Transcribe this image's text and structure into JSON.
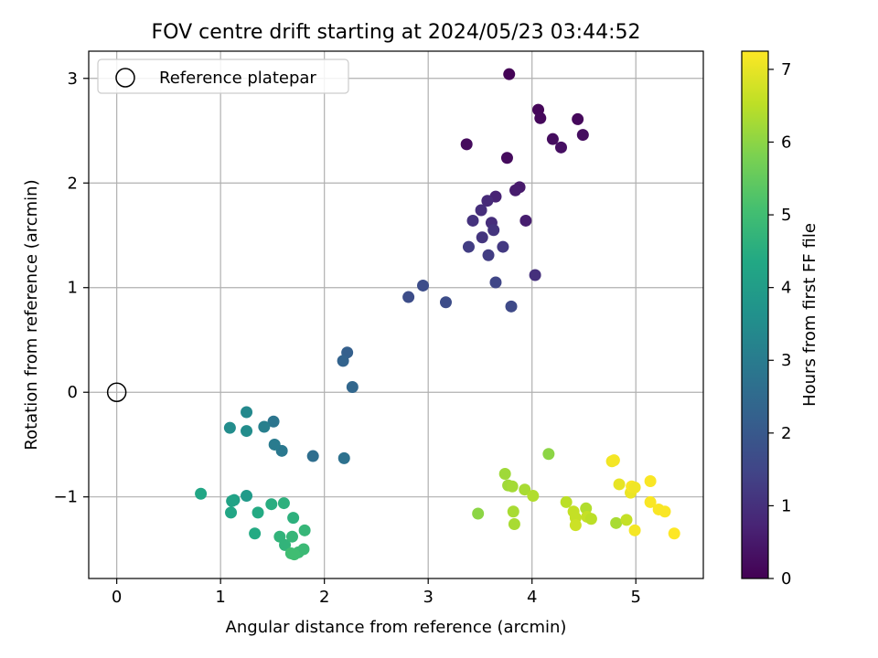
{
  "chart_data": {
    "type": "scatter",
    "title": "FOV centre drift starting at 2024/05/23 03:44:52",
    "xlabel": "Angular distance from reference (arcmin)",
    "ylabel": "Rotation from reference (arcmin)",
    "xlim": [
      -0.27,
      5.65
    ],
    "ylim": [
      -1.78,
      3.26
    ],
    "xticks": [
      0,
      1,
      2,
      3,
      4,
      5
    ],
    "yticks": [
      -1,
      0,
      1,
      2,
      3
    ],
    "grid": true,
    "legend": {
      "location": "upper-left",
      "entries": [
        "Reference platepar"
      ]
    },
    "reference_point": {
      "x": 0,
      "y": 0,
      "marker": "hollow-circle"
    },
    "colorbar": {
      "label": "Hours from first FF file",
      "colormap": "viridis",
      "range": [
        0,
        7.25
      ],
      "ticks": [
        0,
        1,
        2,
        3,
        4,
        5,
        6,
        7
      ]
    },
    "points": [
      {
        "x": 3.37,
        "y": 2.37,
        "h": 0.2
      },
      {
        "x": 3.78,
        "y": 3.04,
        "h": 0.05
      },
      {
        "x": 4.06,
        "y": 2.7,
        "h": 0.1
      },
      {
        "x": 4.08,
        "y": 2.62,
        "h": 0.15
      },
      {
        "x": 4.44,
        "y": 2.61,
        "h": 0.15
      },
      {
        "x": 4.2,
        "y": 2.42,
        "h": 0.25
      },
      {
        "x": 4.28,
        "y": 2.34,
        "h": 0.3
      },
      {
        "x": 4.49,
        "y": 2.46,
        "h": 0.25
      },
      {
        "x": 3.76,
        "y": 2.24,
        "h": 0.2
      },
      {
        "x": 3.88,
        "y": 1.96,
        "h": 0.5
      },
      {
        "x": 3.84,
        "y": 1.93,
        "h": 0.55
      },
      {
        "x": 3.65,
        "y": 1.87,
        "h": 0.7
      },
      {
        "x": 3.57,
        "y": 1.83,
        "h": 0.85
      },
      {
        "x": 3.51,
        "y": 1.74,
        "h": 0.95
      },
      {
        "x": 3.43,
        "y": 1.64,
        "h": 1.05
      },
      {
        "x": 3.61,
        "y": 1.62,
        "h": 0.95
      },
      {
        "x": 3.63,
        "y": 1.55,
        "h": 1.1
      },
      {
        "x": 3.94,
        "y": 1.64,
        "h": 0.6
      },
      {
        "x": 3.52,
        "y": 1.48,
        "h": 1.1
      },
      {
        "x": 3.39,
        "y": 1.39,
        "h": 1.3
      },
      {
        "x": 3.72,
        "y": 1.39,
        "h": 1.2
      },
      {
        "x": 3.58,
        "y": 1.31,
        "h": 1.3
      },
      {
        "x": 4.03,
        "y": 1.12,
        "h": 1.0
      },
      {
        "x": 3.65,
        "y": 1.05,
        "h": 1.5
      },
      {
        "x": 3.8,
        "y": 0.82,
        "h": 1.6
      },
      {
        "x": 2.81,
        "y": 0.91,
        "h": 1.7
      },
      {
        "x": 2.95,
        "y": 1.02,
        "h": 1.7
      },
      {
        "x": 3.17,
        "y": 0.86,
        "h": 1.7
      },
      {
        "x": 2.22,
        "y": 0.38,
        "h": 2.2
      },
      {
        "x": 2.18,
        "y": 0.3,
        "h": 2.3
      },
      {
        "x": 2.27,
        "y": 0.05,
        "h": 2.4
      },
      {
        "x": 1.89,
        "y": -0.61,
        "h": 2.6
      },
      {
        "x": 2.19,
        "y": -0.63,
        "h": 2.7
      },
      {
        "x": 1.51,
        "y": -0.28,
        "h": 2.8
      },
      {
        "x": 1.59,
        "y": -0.56,
        "h": 2.9
      },
      {
        "x": 1.52,
        "y": -0.5,
        "h": 3.0
      },
      {
        "x": 1.42,
        "y": -0.33,
        "h": 3.1
      },
      {
        "x": 1.25,
        "y": -0.19,
        "h": 3.4
      },
      {
        "x": 1.25,
        "y": -0.37,
        "h": 3.5
      },
      {
        "x": 1.09,
        "y": -0.34,
        "h": 3.5
      },
      {
        "x": 1.25,
        "y": -0.99,
        "h": 3.9
      },
      {
        "x": 1.13,
        "y": -1.03,
        "h": 4.1
      },
      {
        "x": 1.11,
        "y": -1.04,
        "h": 4.2
      },
      {
        "x": 1.1,
        "y": -1.15,
        "h": 4.3
      },
      {
        "x": 0.81,
        "y": -0.97,
        "h": 4.3
      },
      {
        "x": 1.36,
        "y": -1.15,
        "h": 4.4
      },
      {
        "x": 1.33,
        "y": -1.35,
        "h": 4.4
      },
      {
        "x": 1.49,
        "y": -1.07,
        "h": 4.5
      },
      {
        "x": 1.61,
        "y": -1.06,
        "h": 4.6
      },
      {
        "x": 1.7,
        "y": -1.2,
        "h": 4.6
      },
      {
        "x": 1.57,
        "y": -1.38,
        "h": 4.7
      },
      {
        "x": 1.62,
        "y": -1.46,
        "h": 4.7
      },
      {
        "x": 1.69,
        "y": -1.38,
        "h": 4.8
      },
      {
        "x": 1.81,
        "y": -1.32,
        "h": 4.8
      },
      {
        "x": 1.8,
        "y": -1.5,
        "h": 4.9
      },
      {
        "x": 1.75,
        "y": -1.53,
        "h": 4.9
      },
      {
        "x": 1.68,
        "y": -1.54,
        "h": 5.0
      },
      {
        "x": 1.71,
        "y": -1.55,
        "h": 5.0
      },
      {
        "x": 3.48,
        "y": -1.16,
        "h": 6.0
      },
      {
        "x": 3.74,
        "y": -0.78,
        "h": 6.2
      },
      {
        "x": 3.77,
        "y": -0.89,
        "h": 6.2
      },
      {
        "x": 3.81,
        "y": -0.9,
        "h": 6.25
      },
      {
        "x": 3.82,
        "y": -1.14,
        "h": 6.3
      },
      {
        "x": 3.83,
        "y": -1.26,
        "h": 6.3
      },
      {
        "x": 3.93,
        "y": -0.93,
        "h": 6.3
      },
      {
        "x": 4.01,
        "y": -0.99,
        "h": 6.4
      },
      {
        "x": 4.16,
        "y": -0.59,
        "h": 6.0
      },
      {
        "x": 4.33,
        "y": -1.05,
        "h": 6.5
      },
      {
        "x": 4.4,
        "y": -1.14,
        "h": 6.6
      },
      {
        "x": 4.42,
        "y": -1.2,
        "h": 6.6
      },
      {
        "x": 4.42,
        "y": -1.27,
        "h": 6.7
      },
      {
        "x": 4.52,
        "y": -1.11,
        "h": 6.4
      },
      {
        "x": 4.53,
        "y": -1.19,
        "h": 6.6
      },
      {
        "x": 4.57,
        "y": -1.21,
        "h": 6.5
      },
      {
        "x": 4.77,
        "y": -0.66,
        "h": 7.1
      },
      {
        "x": 4.79,
        "y": -0.65,
        "h": 7.15
      },
      {
        "x": 4.81,
        "y": -1.25,
        "h": 6.3
      },
      {
        "x": 4.84,
        "y": -0.88,
        "h": 7.0
      },
      {
        "x": 4.91,
        "y": -1.22,
        "h": 6.6
      },
      {
        "x": 4.95,
        "y": -0.96,
        "h": 7.05
      },
      {
        "x": 4.96,
        "y": -0.9,
        "h": 7.2
      },
      {
        "x": 4.99,
        "y": -0.91,
        "h": 7.1
      },
      {
        "x": 4.99,
        "y": -1.32,
        "h": 7.15
      },
      {
        "x": 5.14,
        "y": -0.85,
        "h": 7.2
      },
      {
        "x": 5.14,
        "y": -1.05,
        "h": 7.2
      },
      {
        "x": 5.22,
        "y": -1.12,
        "h": 7.2
      },
      {
        "x": 5.28,
        "y": -1.14,
        "h": 7.2
      },
      {
        "x": 5.37,
        "y": -1.35,
        "h": 7.25
      }
    ]
  }
}
